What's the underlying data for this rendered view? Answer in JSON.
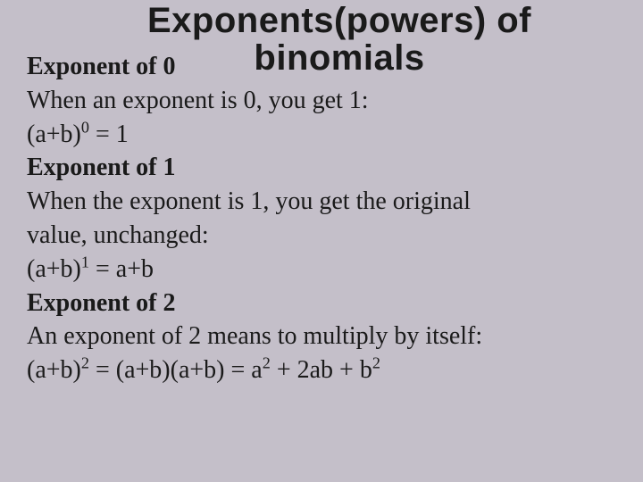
{
  "colors": {
    "background": "#c4bfc9",
    "text": "#1a1a1a"
  },
  "typography": {
    "title_font": "Trebuchet MS",
    "body_font": "Georgia",
    "title_fontsize": 40,
    "body_fontsize": 28,
    "title_weight": "bold",
    "heading_weight": "bold"
  },
  "slide": {
    "title_line1": "Exponents(powers) of",
    "title_line2": "binomials",
    "sections": [
      {
        "heading": "Exponent of 0",
        "body1": "When an exponent is 0, you get 1:",
        "formula_base": "(a+b)",
        "formula_exp": "0",
        "formula_rhs": " = 1"
      },
      {
        "heading": "Exponent of 1",
        "body1": "When the exponent is 1, you get the original",
        "body2": "value, unchanged:",
        "formula_base": "(a+b)",
        "formula_exp": "1",
        "formula_rhs": " = a+b"
      },
      {
        "heading": "Exponent of 2",
        "body1": "An exponent of 2 means to multiply by itself:",
        "formula_base": "(a+b)",
        "formula_exp": "2",
        "formula_mid": " = (a+b)(a+b) = a",
        "formula_exp2": "2",
        "formula_mid2": " + 2ab + b",
        "formula_exp3": "2"
      }
    ]
  }
}
